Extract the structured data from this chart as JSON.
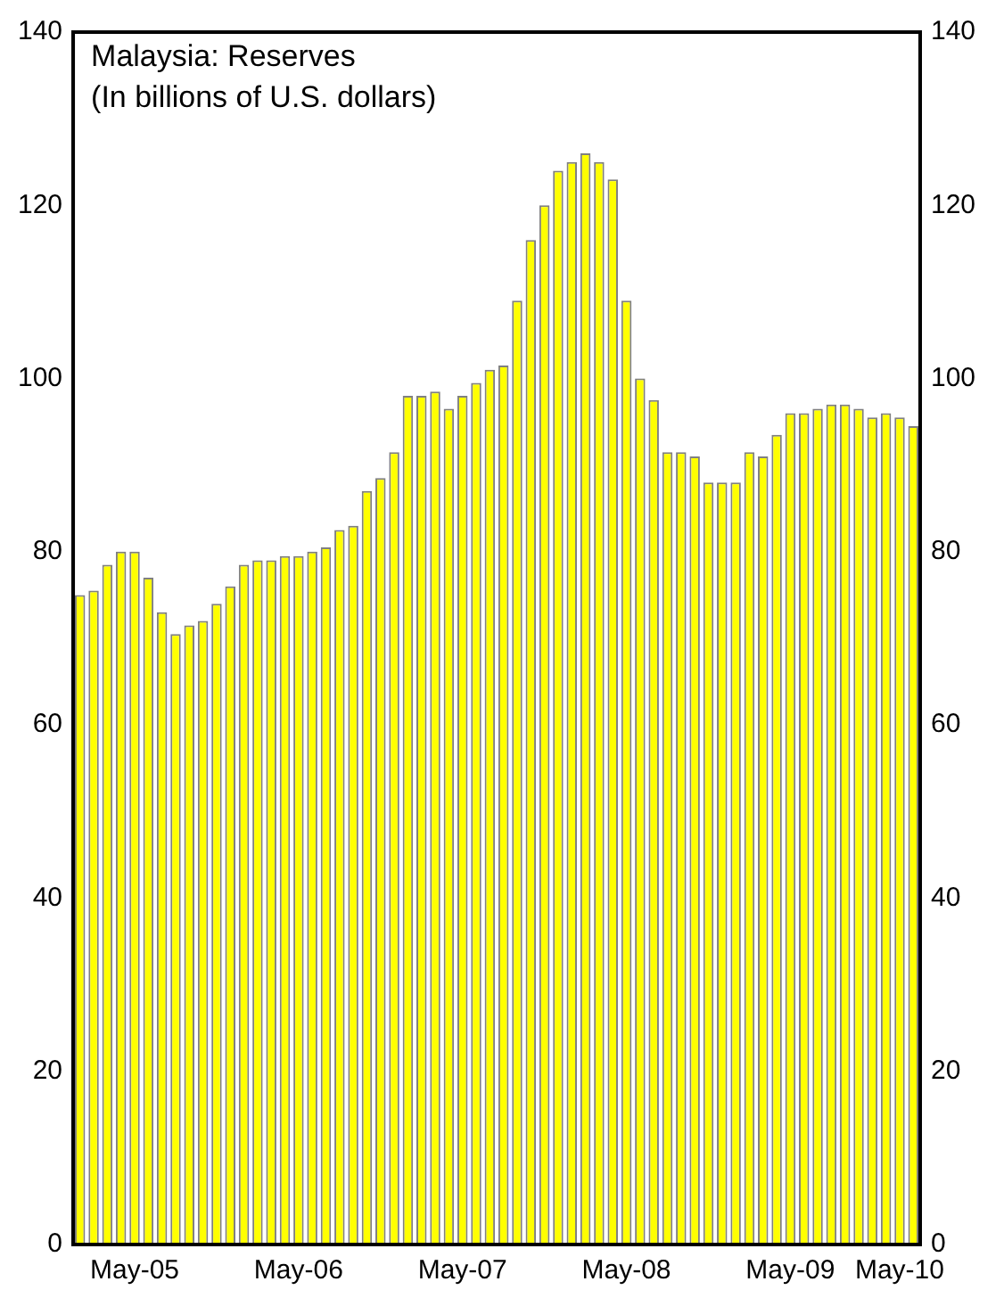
{
  "chart_data": {
    "type": "bar",
    "title": "Malaysia: Reserves",
    "subtitle": "(In billions of U.S. dollars)",
    "categories": [
      null,
      null,
      null,
      null,
      "May-05",
      null,
      null,
      null,
      null,
      null,
      null,
      null,
      null,
      null,
      null,
      null,
      "May-06",
      null,
      null,
      null,
      null,
      null,
      null,
      null,
      null,
      null,
      null,
      null,
      "May-07",
      null,
      null,
      null,
      null,
      null,
      null,
      null,
      null,
      null,
      null,
      null,
      "May-08",
      null,
      null,
      null,
      null,
      null,
      null,
      null,
      null,
      null,
      null,
      null,
      "May-09",
      null,
      null,
      null,
      null,
      null,
      null,
      null,
      "May-10",
      null
    ],
    "series": [
      {
        "color": "#ffff00",
        "values": [
          75,
          75.5,
          78.5,
          80,
          80,
          77,
          73,
          70.5,
          71.5,
          72,
          74,
          76,
          78.5,
          79,
          79,
          79.5,
          79.5,
          80,
          80.5,
          82.5,
          83,
          87,
          88.5,
          91.5,
          98,
          98,
          98.5,
          96.5,
          98,
          99.5,
          101,
          101.5,
          109,
          116,
          120,
          124,
          125,
          126,
          125,
          123,
          109,
          100,
          97.5,
          91.5,
          91.5,
          91,
          88,
          88,
          88,
          91.5,
          91,
          93.5,
          96,
          96,
          96.5,
          97,
          97,
          96.5,
          95.5,
          96,
          95.5,
          94.5
        ]
      }
    ],
    "ylim": [
      0,
      140
    ],
    "yticks": [
      0,
      20,
      40,
      60,
      80,
      100,
      120,
      140
    ],
    "y2lim": [
      0,
      140
    ],
    "y2ticks": [
      0,
      20,
      40,
      60,
      80,
      100,
      120,
      140
    ],
    "grid": false,
    "legend": false
  }
}
